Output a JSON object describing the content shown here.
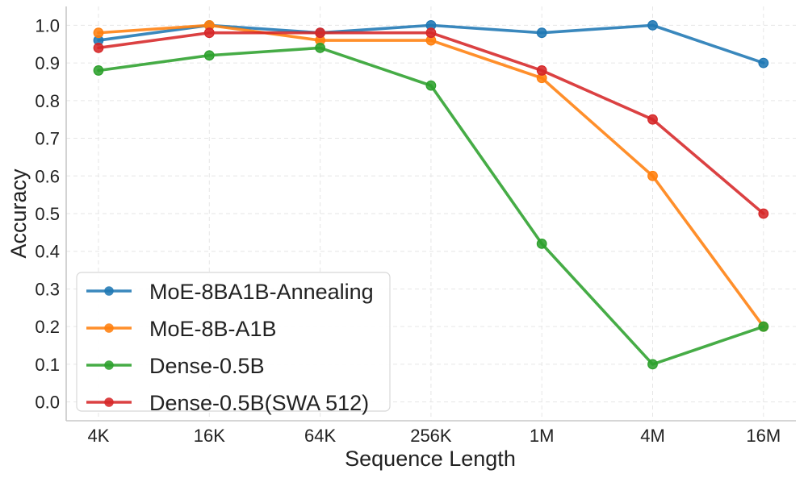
{
  "chart_data": {
    "type": "line",
    "title": "",
    "xlabel": "Sequence Length",
    "ylabel": "Accuracy",
    "categories": [
      "4K",
      "16K",
      "64K",
      "256K",
      "1M",
      "4M",
      "16M"
    ],
    "ylim": [
      -0.05,
      1.05
    ],
    "yticks": [
      0.0,
      0.1,
      0.2,
      0.3,
      0.4,
      0.5,
      0.6,
      0.7,
      0.8,
      0.9,
      1.0
    ],
    "ytick_labels": [
      "0.0",
      "0.1",
      "0.2",
      "0.3",
      "0.4",
      "0.5",
      "0.6",
      "0.7",
      "0.8",
      "0.9",
      "1.0"
    ],
    "grid": true,
    "legend_position": "bottom-left",
    "series": [
      {
        "name": "MoE-8BA1B-Annealing",
        "color": "#1f77b4",
        "values": [
          0.96,
          1.0,
          0.98,
          1.0,
          0.98,
          1.0,
          0.9
        ]
      },
      {
        "name": "MoE-8B-A1B",
        "color": "#ff7f0e",
        "values": [
          0.98,
          1.0,
          0.96,
          0.96,
          0.86,
          0.6,
          0.2
        ]
      },
      {
        "name": "Dense-0.5B",
        "color": "#2ca02c",
        "values": [
          0.88,
          0.92,
          0.94,
          0.84,
          0.42,
          0.1,
          0.2
        ]
      },
      {
        "name": "Dense-0.5B(SWA 512)",
        "color": "#d62728",
        "values": [
          0.94,
          0.98,
          0.98,
          0.98,
          0.88,
          0.75,
          0.5
        ]
      }
    ]
  }
}
